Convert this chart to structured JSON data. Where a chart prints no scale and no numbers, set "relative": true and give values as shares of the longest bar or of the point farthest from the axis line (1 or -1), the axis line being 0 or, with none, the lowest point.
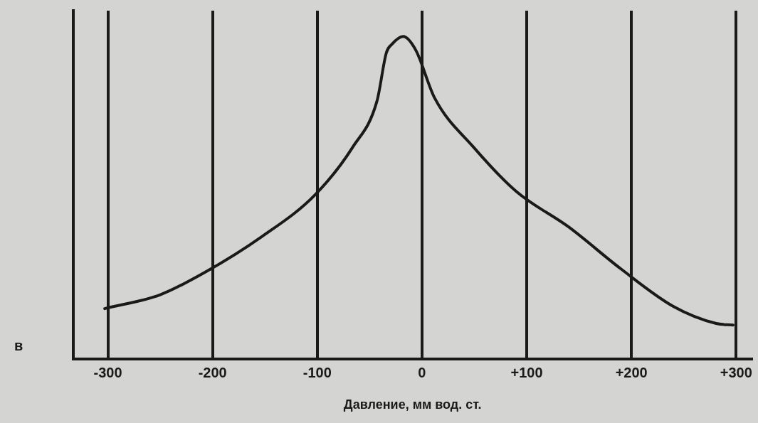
{
  "chart_data": {
    "type": "line",
    "relative": true,
    "xlabel": "Давление, мм вод. ст.",
    "annotations": [
      "в"
    ],
    "x": [
      -303,
      -250,
      -207,
      -153,
      -102,
      -66,
      -43,
      -34,
      -29,
      -18,
      -6,
      12,
      49,
      90,
      140,
      190,
      240,
      281,
      297
    ],
    "series": [
      {
        "color": "#1a1a1a",
        "values": [
          0.157,
          0.2,
          0.27,
          0.38,
          0.51,
          0.658,
          0.8,
          0.95,
          0.975,
          1,
          0.958,
          0.81,
          0.658,
          0.52,
          0.41,
          0.28,
          0.164,
          0.111,
          0.106
        ]
      }
    ],
    "xlim": [
      -333,
      315
    ],
    "xticks": [
      -300,
      -200,
      -100,
      0,
      {
        "value": 100,
        "label": "+100"
      },
      {
        "value": 200,
        "label": "+200"
      },
      {
        "value": 300,
        "label": "+300"
      }
    ],
    "grid": "x",
    "marker": "none",
    "line_style": "solid",
    "legend": false
  }
}
